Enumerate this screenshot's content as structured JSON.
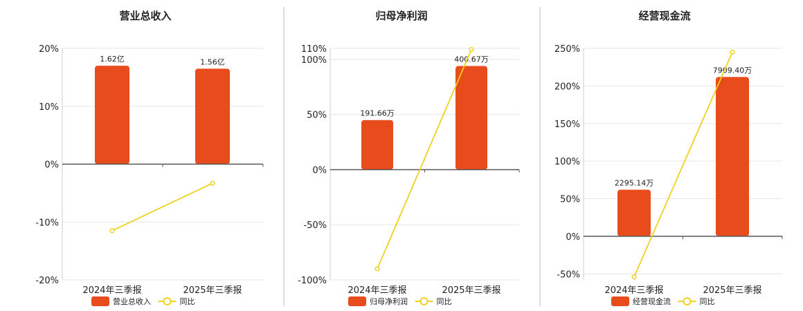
{
  "colors": {
    "bar": "#e84c1c",
    "line": "#f0d020",
    "axis": "#555555",
    "grid": "#e6e6e6",
    "divider": "#bbbbbb"
  },
  "chart_data": [
    {
      "type": "bar",
      "title": "营业总收入",
      "categories": [
        "2024年三季报",
        "2025年三季报"
      ],
      "bar_labels": [
        "1.62亿",
        "1.56亿"
      ],
      "bar_values": [
        17,
        16.5
      ],
      "line_values": [
        -11.5,
        -3.3
      ],
      "yticks": [
        20,
        10,
        0,
        -10,
        -20
      ],
      "ytick_labels": [
        "20%",
        "10%",
        "0%",
        "-10%",
        "-20%"
      ],
      "ylim": [
        -20,
        20
      ],
      "legend": {
        "bar": "营业总收入",
        "line": "同比"
      }
    },
    {
      "type": "bar",
      "title": "归母净利润",
      "categories": [
        "2024年三季报",
        "2025年三季报"
      ],
      "bar_labels": [
        "191.66万",
        "400.67万"
      ],
      "bar_values": [
        45,
        94
      ],
      "line_values": [
        -90,
        109
      ],
      "yticks": [
        110,
        100,
        50,
        0,
        -50,
        -100
      ],
      "ytick_labels": [
        "110%",
        "100%",
        "50%",
        "0%",
        "-50%",
        "-100%"
      ],
      "ylim": [
        -100,
        110
      ],
      "legend": {
        "bar": "归母净利润",
        "line": "同比"
      }
    },
    {
      "type": "bar",
      "title": "经营现金流",
      "categories": [
        "2024年三季报",
        "2025年三季报"
      ],
      "bar_labels": [
        "2295.14万",
        "7909.40万"
      ],
      "bar_values": [
        62,
        212
      ],
      "line_values": [
        -54,
        245
      ],
      "yticks": [
        250,
        200,
        150,
        100,
        50,
        0,
        -50
      ],
      "ytick_labels": [
        "250%",
        "200%",
        "150%",
        "100%",
        "50%",
        "0%",
        "-50%"
      ],
      "ylim": [
        -58,
        250
      ],
      "legend": {
        "bar": "经营现金流",
        "line": "同比"
      }
    }
  ]
}
